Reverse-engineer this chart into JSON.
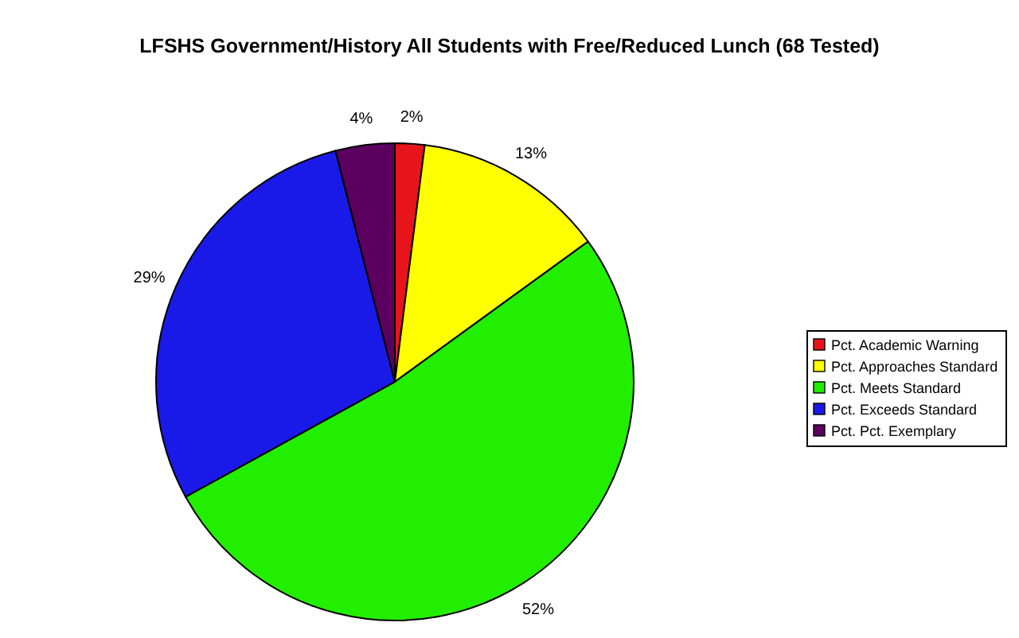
{
  "chart_data": {
    "type": "pie",
    "title": "LFSHS Government/History All Students with Free/Reduced Lunch (68 Tested)",
    "categories": [
      "Pct. Academic Warning",
      "Pct. Approaches Standard",
      "Pct. Meets Standard",
      "Pct. Exceeds Standard",
      "Pct. Pct. Exemplary"
    ],
    "values": [
      2,
      13,
      52,
      29,
      4
    ],
    "colors": [
      "#e8141c",
      "#ffff00",
      "#22ee00",
      "#1a1ae8",
      "#5c0060"
    ],
    "value_labels": [
      "2%",
      "13%",
      "52%",
      "29%",
      "4%"
    ],
    "legend": "right"
  }
}
